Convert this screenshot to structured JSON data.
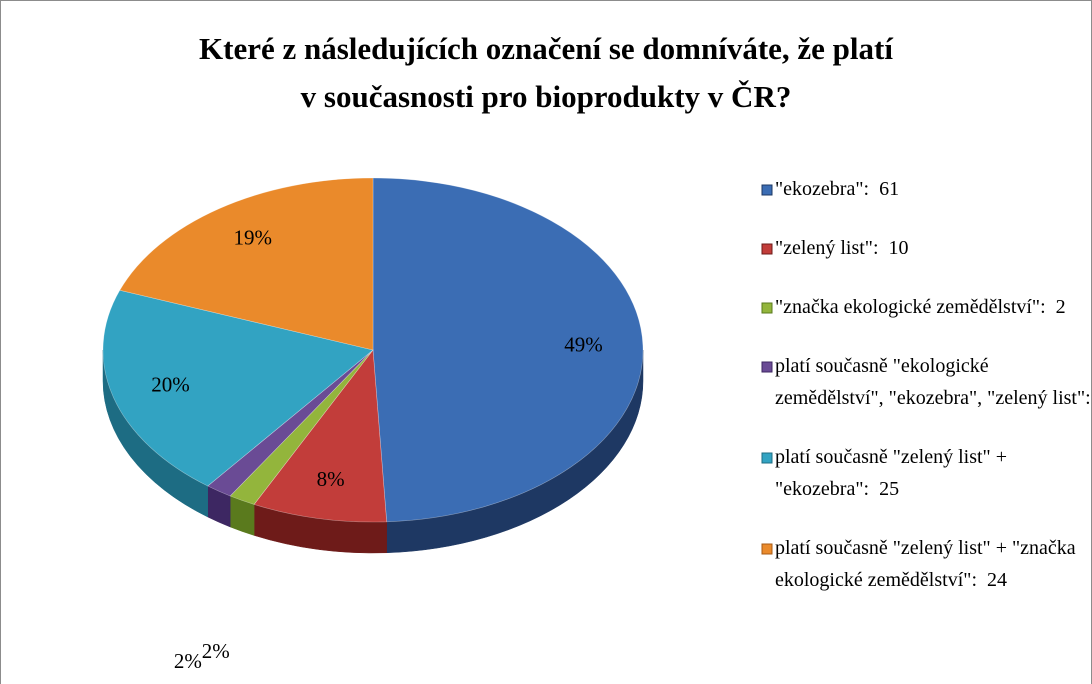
{
  "chart_data": {
    "type": "pie",
    "title": [
      "Které z následujících označení se domníváte, že platí",
      "v současnosti pro bioprodukty v ČR?"
    ],
    "categories": [
      "\"ekozebra\"",
      "\"zelený list\"",
      "\"značka ekologické zemědělství\"",
      "platí současně \"ekologické zemědělství\", \"ekozebra\", \"zelený list\"",
      "platí současně \"zelený list\" + \"ekozebra\"",
      "platí současně \"zelený list\" + \"značka ekologické zemědělství\""
    ],
    "values": [
      61,
      10,
      2,
      2,
      25,
      24
    ],
    "data_labels": [
      "49%",
      "8%",
      "2%",
      "2%",
      "20%",
      "19%"
    ],
    "legend_separator": ":  ",
    "colors": [
      "#3b6db4",
      "#c23d3a",
      "#93b53c",
      "#6a4b95",
      "#32a3c2",
      "#ea8a2b"
    ],
    "side_colors": [
      "#1e3863",
      "#6e1b19",
      "#5a7a1d",
      "#3d2762",
      "#1d6c83",
      "#a85b15"
    ],
    "legend": "right"
  }
}
